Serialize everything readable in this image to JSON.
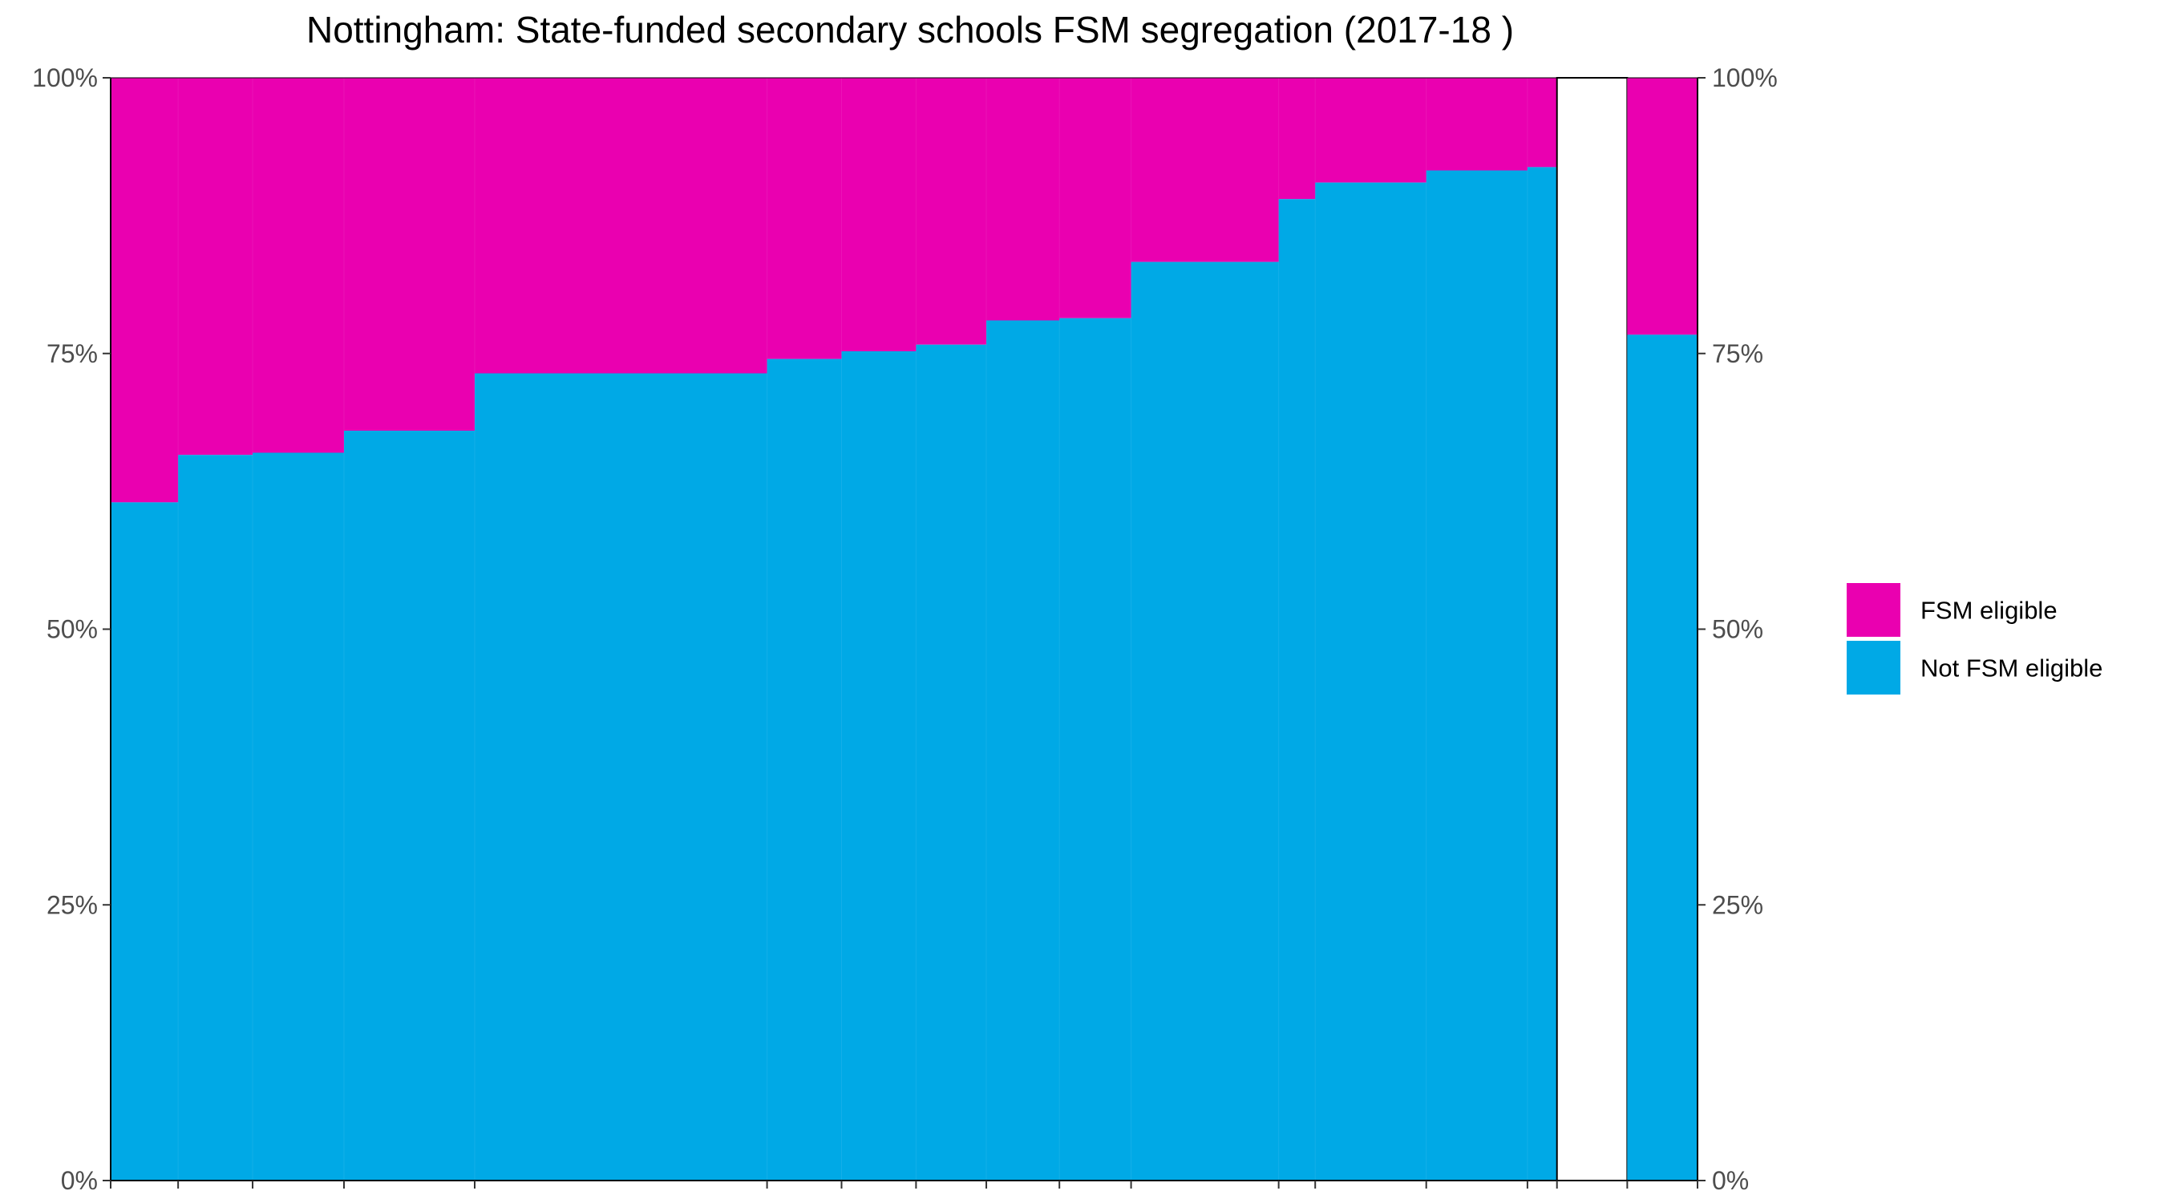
{
  "chart_data": {
    "type": "bar",
    "title": "Nottingham: State-funded secondary schools FSM segregation (2017-18 )",
    "xlabel": "",
    "ylabel": "",
    "ylim": [
      0,
      100
    ],
    "y_tick_labels": [
      "0%",
      "25%",
      "50%",
      "75%",
      "100%"
    ],
    "y_ticks": [
      0,
      25,
      50,
      75,
      100
    ],
    "variable_width_bars": true,
    "relative_widths": [
      48,
      53,
      65,
      93,
      208,
      53,
      53,
      50,
      52,
      51,
      105,
      26,
      79,
      72,
      21,
      50,
      50
    ],
    "not_fsm_eligible_percent": [
      61.5,
      65.8,
      66.0,
      68.0,
      73.2,
      74.5,
      75.2,
      75.8,
      78.0,
      78.2,
      83.3,
      89.0,
      90.5,
      91.6,
      91.9,
      null,
      76.7
    ],
    "series": [
      {
        "name": "FSM eligible",
        "color": "#ea00b0",
        "values": [
          38.5,
          34.2,
          34.0,
          32.0,
          26.8,
          25.5,
          24.8,
          24.2,
          22.0,
          21.8,
          16.7,
          11.0,
          9.5,
          8.4,
          8.1,
          null,
          23.3
        ]
      },
      {
        "name": "Not FSM eligible",
        "color": "#00a9e6",
        "values": [
          61.5,
          65.8,
          66.0,
          68.0,
          73.2,
          74.5,
          75.2,
          75.8,
          78.0,
          78.2,
          83.3,
          89.0,
          90.5,
          91.6,
          91.9,
          null,
          76.7
        ]
      }
    ],
    "gap_bar_index": 15,
    "legend": {
      "position": "right",
      "entries": [
        "FSM eligible",
        "Not FSM eligible"
      ]
    },
    "grid": false
  }
}
